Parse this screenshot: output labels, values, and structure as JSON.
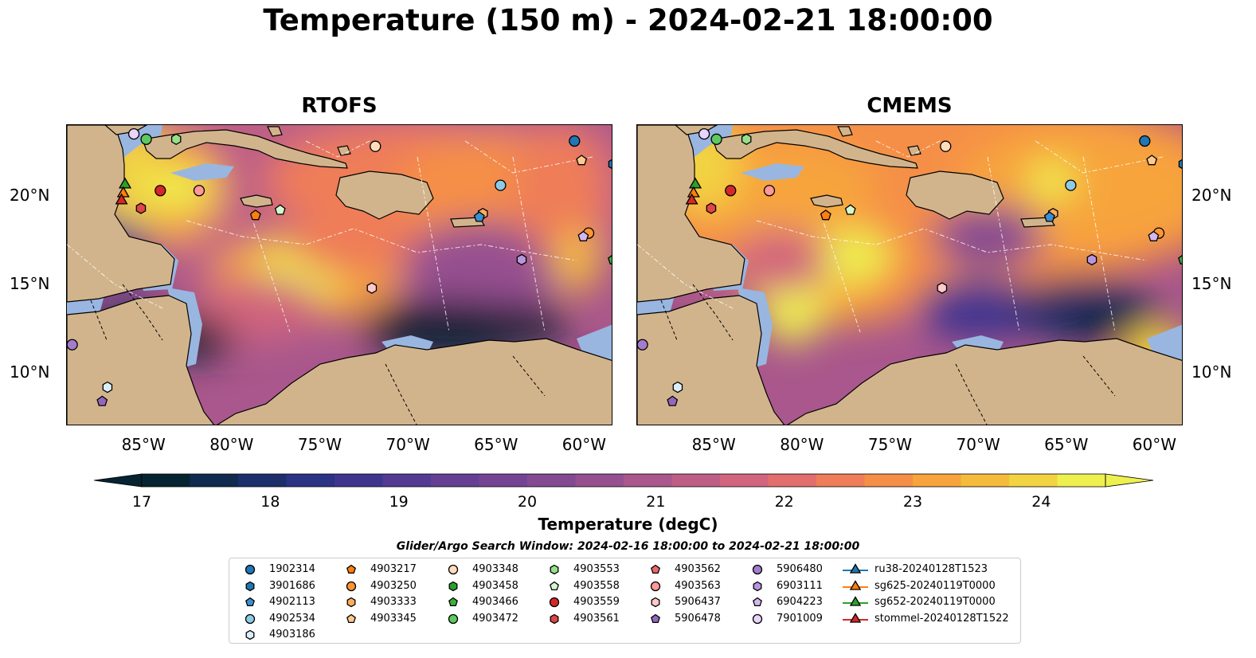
{
  "title": "Temperature (150 m) - 2024-02-21 18:00:00",
  "panels": [
    {
      "title": "RTOFS"
    },
    {
      "title": "CMEMS"
    }
  ],
  "lon_ticks": [
    "85°W",
    "80°W",
    "75°W",
    "70°W",
    "65°W",
    "60°W"
  ],
  "lat_ticks": [
    "20°N",
    "15°N",
    "10°N"
  ],
  "extent": {
    "lon_min": -89.5,
    "lon_max": -58.5,
    "lat_min": 7.0,
    "lat_max": 24.0
  },
  "colorbar": {
    "label": "Temperature (degC)",
    "ticks": [
      "17",
      "18",
      "19",
      "20",
      "21",
      "22",
      "23",
      "24"
    ],
    "range": [
      17,
      24.5
    ],
    "colors": [
      "#062332",
      "#112b4f",
      "#1c2f6b",
      "#2b3384",
      "#3f358f",
      "#533a92",
      "#643f93",
      "#744493",
      "#844a91",
      "#965090",
      "#a9578c",
      "#bd5e86",
      "#d1657d",
      "#e36e6e",
      "#ef7d59",
      "#f58f47",
      "#f7a43d",
      "#f5bb3c",
      "#f2d342",
      "#eef04f"
    ]
  },
  "search_window": "Glider/Argo Search Window: 2024-02-16 18:00:00 to 2024-02-21 18:00:00",
  "colors": {
    "land": "#d2b48c",
    "shelf": "#98b6e0"
  },
  "legend": [
    {
      "label": "1902314",
      "shape": "circle",
      "color": "#1f77b4"
    },
    {
      "label": "3901686",
      "shape": "hexagon",
      "color": "#1f77b4"
    },
    {
      "label": "4902113",
      "shape": "pentagon",
      "color": "#3a8fd1"
    },
    {
      "label": "4902534",
      "shape": "circle",
      "color": "#8ecae6"
    },
    {
      "label": "4903186",
      "shape": "hexagon",
      "color": "#dbeefc"
    },
    {
      "label": "4903217",
      "shape": "pentagon",
      "color": "#ff7f0e"
    },
    {
      "label": "4903250",
      "shape": "circle",
      "color": "#ff9533"
    },
    {
      "label": "4903333",
      "shape": "hexagon",
      "color": "#ffad5c"
    },
    {
      "label": "4903345",
      "shape": "pentagon",
      "color": "#ffc98e"
    },
    {
      "label": "4903348",
      "shape": "circle",
      "color": "#ffdcbc"
    },
    {
      "label": "4903458",
      "shape": "hexagon",
      "color": "#2ca02c"
    },
    {
      "label": "4903466",
      "shape": "pentagon",
      "color": "#3cb03c"
    },
    {
      "label": "4903472",
      "shape": "circle",
      "color": "#5ec95e"
    },
    {
      "label": "4903553",
      "shape": "hexagon",
      "color": "#98df8a"
    },
    {
      "label": "4903558",
      "shape": "pentagon",
      "color": "#d4f7cf"
    },
    {
      "label": "4903559",
      "shape": "circle",
      "color": "#d62728"
    },
    {
      "label": "4903561",
      "shape": "hexagon",
      "color": "#e04546"
    },
    {
      "label": "4903562",
      "shape": "pentagon",
      "color": "#ea6a6b"
    },
    {
      "label": "4903563",
      "shape": "circle",
      "color": "#ff9896"
    },
    {
      "label": "5906437",
      "shape": "hexagon",
      "color": "#ffc9c8"
    },
    {
      "label": "5906478",
      "shape": "pentagon",
      "color": "#9467bd"
    },
    {
      "label": "5906480",
      "shape": "circle",
      "color": "#a37ccb"
    },
    {
      "label": "6903111",
      "shape": "hexagon",
      "color": "#b995de"
    },
    {
      "label": "6904223",
      "shape": "pentagon",
      "color": "#d3b8ee"
    },
    {
      "label": "7901009",
      "shape": "circle",
      "color": "#e9d4fb"
    },
    {
      "label": "ru38-20240128T1523",
      "shape": "triangle-line",
      "color": "#1f77b4"
    },
    {
      "label": "sg625-20240119T0000",
      "shape": "triangle-line",
      "color": "#ff7f0e"
    },
    {
      "label": "sg652-20240119T0000",
      "shape": "triangle-line",
      "color": "#2ca02c"
    },
    {
      "label": "stommel-20240128T1522",
      "shape": "triangle-line",
      "color": "#d62728"
    }
  ],
  "markers": [
    {
      "id": "1902314",
      "lon": -60.7,
      "lat": 23.1
    },
    {
      "id": "3901686",
      "lon": -58.5,
      "lat": 21.8
    },
    {
      "id": "4902534",
      "lon": -64.9,
      "lat": 20.6
    },
    {
      "id": "4903348",
      "lon": -72.0,
      "lat": 22.8
    },
    {
      "id": "4903553",
      "lon": -83.3,
      "lat": 23.2
    },
    {
      "id": "4903472",
      "lon": -85.0,
      "lat": 23.2
    },
    {
      "id": "7901009",
      "lon": -85.7,
      "lat": 23.5
    },
    {
      "id": "4903559",
      "lon": -84.2,
      "lat": 20.3
    },
    {
      "id": "4903563",
      "lon": -82.0,
      "lat": 20.3
    },
    {
      "id": "4903217",
      "lon": -78.8,
      "lat": 18.9
    },
    {
      "id": "4903558",
      "lon": -77.4,
      "lat": 19.2
    },
    {
      "id": "4903333",
      "lon": -65.9,
      "lat": 19.0
    },
    {
      "id": "4902113",
      "lon": -66.1,
      "lat": 18.8
    },
    {
      "id": "4903250",
      "lon": -59.9,
      "lat": 17.9
    },
    {
      "id": "6904223",
      "lon": -60.2,
      "lat": 17.7
    },
    {
      "id": "4903466",
      "lon": -58.5,
      "lat": 16.4
    },
    {
      "id": "6903111",
      "lon": -63.7,
      "lat": 16.4
    },
    {
      "id": "5906437",
      "lon": -72.2,
      "lat": 14.8
    },
    {
      "id": "5906480",
      "lon": -89.2,
      "lat": 11.6
    },
    {
      "id": "4903186",
      "lon": -87.2,
      "lat": 9.2
    },
    {
      "id": "5906478",
      "lon": -87.5,
      "lat": 8.4
    },
    {
      "id": "4903345",
      "lon": -60.3,
      "lat": 22.0
    },
    {
      "id": "4903561",
      "lon": -85.3,
      "lat": 19.3
    },
    {
      "id": "sg652-20240119T0000",
      "lon": -86.2,
      "lat": 20.7
    },
    {
      "id": "sg625-20240119T0000",
      "lon": -86.3,
      "lat": 20.2
    },
    {
      "id": "stommel-20240128T1522",
      "lon": -86.4,
      "lat": 19.8
    }
  ]
}
